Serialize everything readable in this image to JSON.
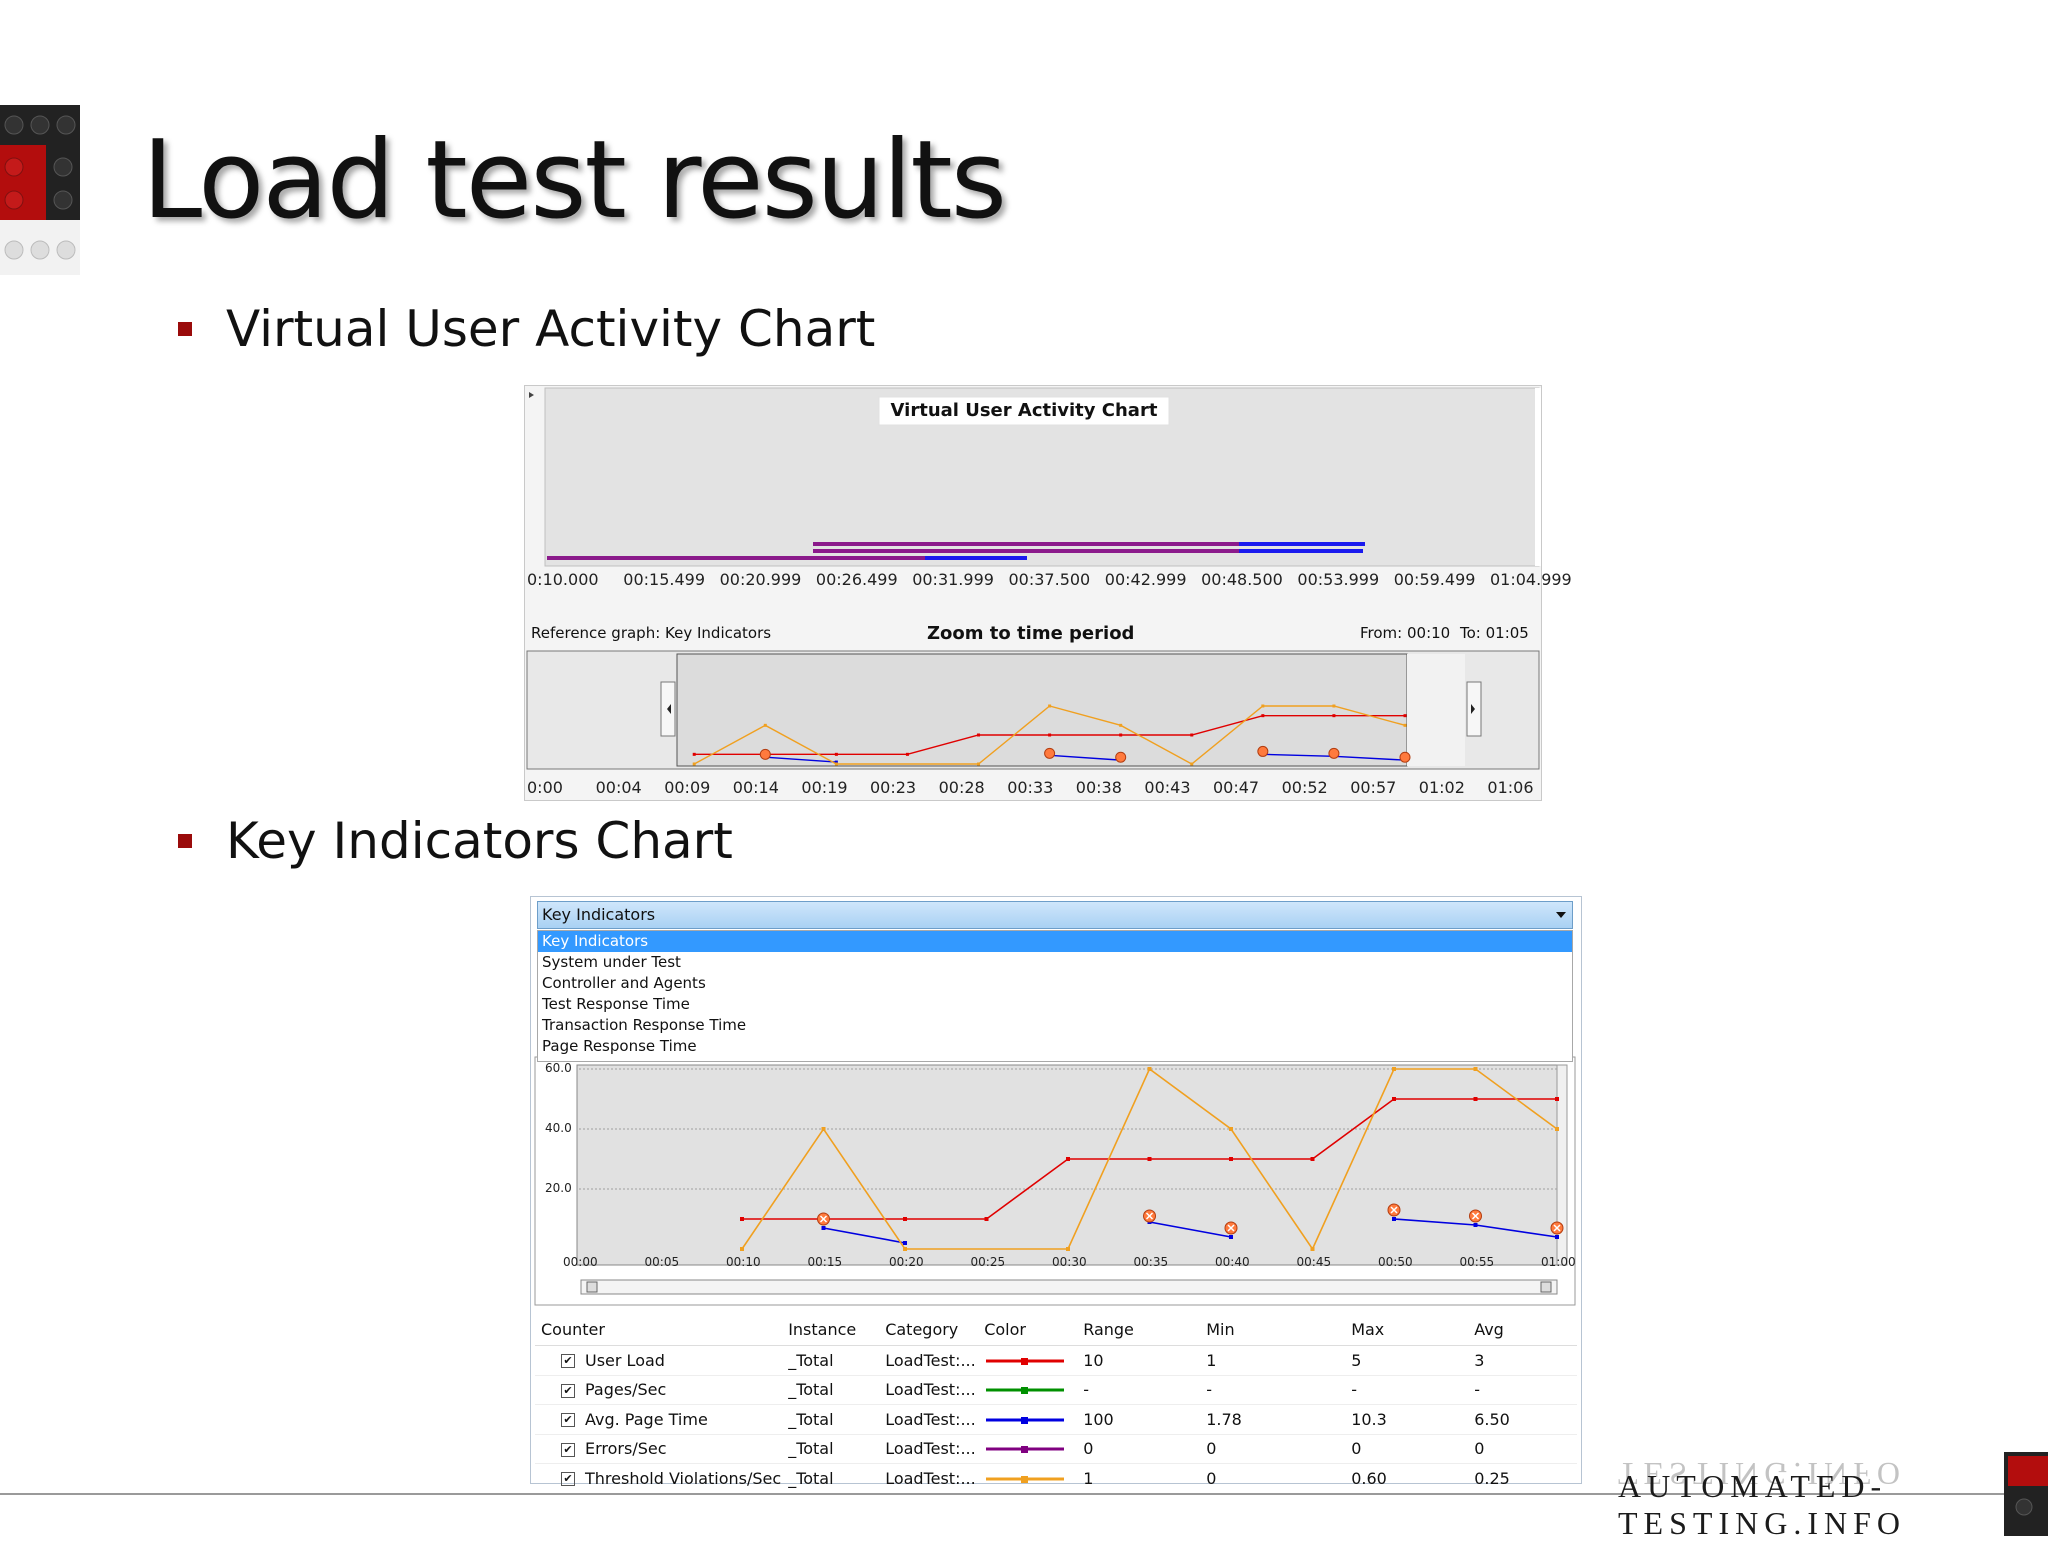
{
  "slide": {
    "title": "Load test results",
    "bullet1": "Virtual User Activity Chart",
    "bullet2": "Key Indicators Chart"
  },
  "vua_chart": {
    "title": "Virtual User Activity Chart",
    "time_ticks": [
      "0:10.000",
      "00:15.499",
      "00:20.999",
      "00:26.499",
      "00:31.999",
      "00:37.500",
      "00:42.999",
      "00:48.500",
      "00:53.999",
      "00:59.499",
      "01:04.999"
    ],
    "reference_label": "Reference graph: Key Indicators",
    "zoom_label": "Zoom to time period",
    "from_label": "From: 00:10",
    "to_label": "To: 01:05",
    "zoom_ticks": [
      "0:00",
      "00:04",
      "00:09",
      "00:14",
      "00:19",
      "00:23",
      "00:28",
      "00:33",
      "00:38",
      "00:43",
      "00:47",
      "00:52",
      "00:57",
      "01:02",
      "01:06"
    ],
    "colors": {
      "purple": "#8b1a8b",
      "blue": "#1a1aee"
    }
  },
  "ki_panel": {
    "dropdown": {
      "selected": "Key Indicators",
      "options": [
        "Key Indicators",
        "System under Test",
        "Controller and Agents",
        "Test Response Time",
        "Transaction Response Time",
        "Page Response Time"
      ]
    },
    "legend": {
      "headers": [
        "Counter",
        "Instance",
        "Category",
        "Color",
        "Range",
        "Min",
        "Max",
        "Avg"
      ],
      "rows": [
        {
          "counter": "User Load",
          "instance": "_Total",
          "category": "LoadTest:...",
          "color": "#e00000",
          "range": "10",
          "min": "1",
          "max": "5",
          "avg": "3"
        },
        {
          "counter": "Pages/Sec",
          "instance": "_Total",
          "category": "LoadTest:...",
          "color": "#009000",
          "range": "-",
          "min": "-",
          "max": "-",
          "avg": "-"
        },
        {
          "counter": "Avg. Page Time",
          "instance": "_Total",
          "category": "LoadTest:...",
          "color": "#0000e0",
          "range": "100",
          "min": "1.78",
          "max": "10.3",
          "avg": "6.50"
        },
        {
          "counter": "Errors/Sec",
          "instance": "_Total",
          "category": "LoadTest:...",
          "color": "#800080",
          "range": "0",
          "min": "0",
          "max": "0",
          "avg": "0"
        },
        {
          "counter": "Threshold Violations/Sec",
          "instance": "_Total",
          "category": "LoadTest:...",
          "color": "#f0a020",
          "range": "1",
          "min": "0",
          "max": "0.60",
          "avg": "0.25"
        }
      ]
    }
  },
  "chart_data": {
    "type": "line",
    "y_ticks": [
      "60.0",
      "40.0",
      "20.0"
    ],
    "x_ticks": [
      "00:00",
      "00:05",
      "00:10",
      "00:15",
      "00:20",
      "00:25",
      "00:30",
      "00:35",
      "00:40",
      "00:45",
      "00:50",
      "00:55",
      "01:00"
    ],
    "ylim": [
      0,
      60
    ],
    "xlim": [
      0,
      60
    ],
    "series": [
      {
        "name": "User Load",
        "color": "#e00000",
        "x": [
          10,
          15,
          20,
          25,
          30,
          35,
          40,
          45,
          50,
          55,
          60
        ],
        "y": [
          10,
          10,
          10,
          10,
          30,
          30,
          30,
          30,
          50,
          50,
          50
        ]
      },
      {
        "name": "Avg. Page Time",
        "color": "#0000e0",
        "x": [
          15,
          20
        ],
        "y": [
          7,
          2
        ]
      },
      {
        "name": "Avg. Page Time",
        "color": "#0000e0",
        "x": [
          35,
          40
        ],
        "y": [
          9,
          4
        ]
      },
      {
        "name": "Avg. Page Time",
        "color": "#0000e0",
        "x": [
          50,
          55,
          60
        ],
        "y": [
          10,
          8,
          4
        ]
      },
      {
        "name": "Threshold Violations/Sec",
        "color": "#f0a020",
        "x": [
          10,
          15,
          20,
          30,
          35,
          40,
          45,
          50,
          55,
          60
        ],
        "y": [
          0,
          40,
          0,
          0,
          60,
          40,
          0,
          60,
          60,
          40
        ]
      }
    ],
    "violation_markers_x": [
      15,
      35,
      40,
      50,
      55,
      60
    ],
    "violation_markers_y": [
      10,
      11,
      7,
      13,
      11,
      7
    ]
  },
  "footer": {
    "brand": "AUTOMATED-TESTING.INFO",
    "line1": "AUTOMATED-",
    "line2": "TESTING.INFO"
  }
}
